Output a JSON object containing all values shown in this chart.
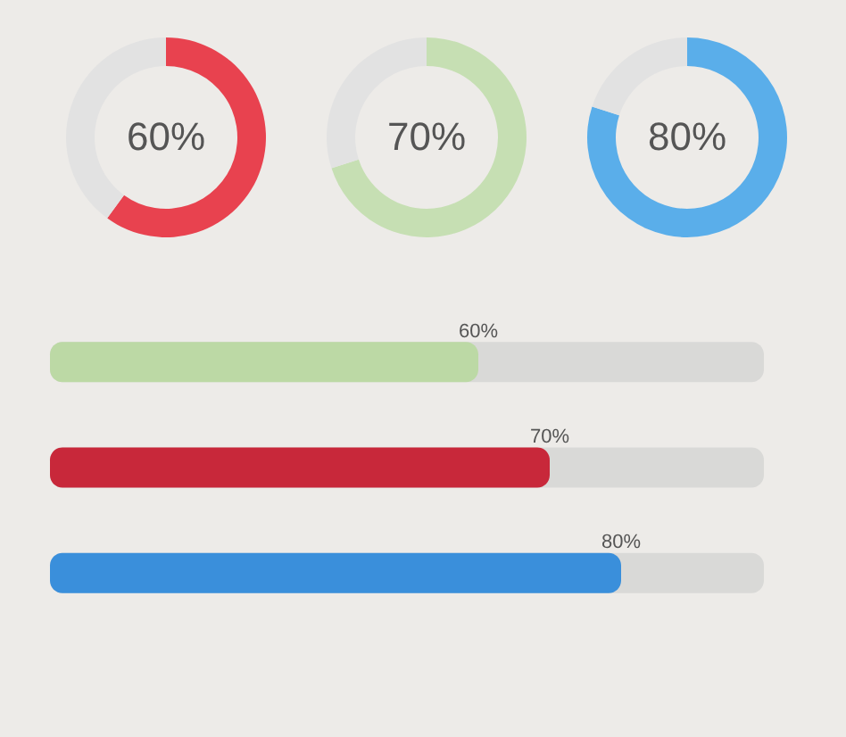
{
  "chart_data": [
    {
      "type": "donut",
      "categories": [
        null,
        null
      ],
      "values": [
        60,
        40
      ],
      "colors": [
        "#e8424f",
        "#e2e2e2"
      ],
      "annotations": [
        "60%"
      ]
    },
    {
      "type": "donut",
      "categories": [
        null,
        null
      ],
      "values": [
        70,
        30
      ],
      "colors": [
        "#c6dfb3",
        "#e2e2e2"
      ],
      "annotations": [
        "70%"
      ]
    },
    {
      "type": "donut",
      "categories": [
        null,
        null
      ],
      "values": [
        80,
        20
      ],
      "colors": [
        "#5aaeea",
        "#e2e2e2"
      ],
      "annotations": [
        "80%"
      ]
    },
    {
      "type": "bar",
      "orientation": "horizontal",
      "tick_labels": false,
      "xlim": [
        0,
        100
      ],
      "categories": [
        null,
        null,
        null
      ],
      "colors": [
        "#bcd9a5",
        "#c8283a",
        "#3a8fdb"
      ],
      "values": [
        60,
        70,
        80
      ],
      "value_labels": [
        "60%",
        "70%",
        "80%"
      ]
    }
  ]
}
